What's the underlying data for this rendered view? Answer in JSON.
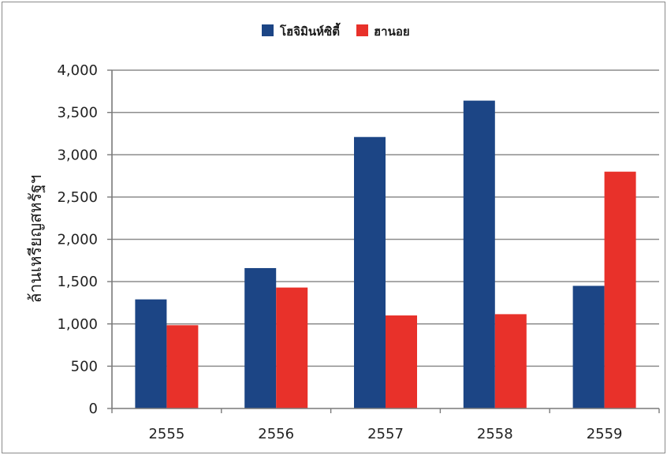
{
  "chart_data": {
    "type": "bar",
    "categories": [
      "2555",
      "2556",
      "2557",
      "2558",
      "2559"
    ],
    "series": [
      {
        "name": "โฮจิมินห์ซิตี้",
        "color": "#1c4585",
        "values": [
          1290,
          1660,
          3210,
          3640,
          1450
        ]
      },
      {
        "name": "ฮานอย",
        "color": "#e8312a",
        "values": [
          985,
          1430,
          1100,
          1115,
          2800
        ]
      }
    ],
    "ylabel": "ล้านเหรียญสหรัฐฯ",
    "ylim": [
      0,
      4000
    ],
    "yticks": [
      0,
      500,
      1000,
      1500,
      2000,
      2500,
      3000,
      3500,
      4000
    ],
    "ytick_labels": [
      "0",
      "500",
      "1,000",
      "1,500",
      "2,000",
      "2,500",
      "3,000",
      "3,500",
      "4,000"
    ],
    "grid": true,
    "legend_position": "top-center"
  }
}
